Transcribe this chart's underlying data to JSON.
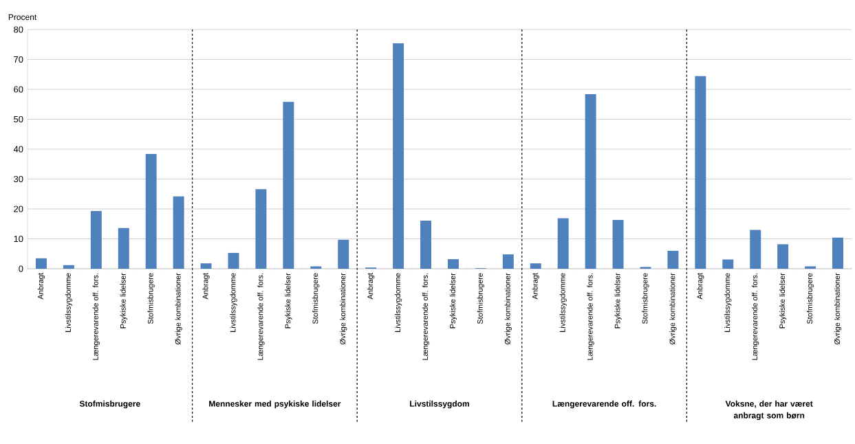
{
  "chart_data": {
    "type": "bar",
    "ylabel": "Procent",
    "color": "#4f81bd",
    "categories": [
      "Anbragt",
      "Livstilssygdomme",
      "Længerevarende off. fors.",
      "Psykiske lidelser",
      "Stofmisbrugere",
      "Øvrige kombinationer",
      "Anbragt",
      "Livstilssygdomme",
      "Længerevarende off. fors.",
      "Psykiske lidelser",
      "Stofmisbrugere",
      "Øvrige kombinationer",
      "Anbragt",
      "Livstilssygdomme",
      "Længerevarende off. fors.",
      "Psykiske lidelser",
      "Stofmisbrugere",
      "Øvrige kombinationer",
      "Anbragt",
      "Livstilssygdomme",
      "Længerevarende off. fors.",
      "Psykiske lidelser",
      "Stofmisbrugere",
      "Øvrige kombinationer",
      "Anbragt",
      "Livstilssygdomme",
      "Længerevarende off. fors.",
      "Psykiske lidelser",
      "Stofmisbrugere",
      "Øvrige kombinationer"
    ],
    "values": [
      3.5,
      1.2,
      19.3,
      13.6,
      38.4,
      24.2,
      1.8,
      5.3,
      26.6,
      55.8,
      0.8,
      9.7,
      0.4,
      75.4,
      16.1,
      3.2,
      0.2,
      4.8,
      1.8,
      16.9,
      58.4,
      16.3,
      0.6,
      6.0,
      64.4,
      3.1,
      13.0,
      8.2,
      0.8,
      10.4
    ],
    "ylim": [
      0,
      80
    ],
    "yticks": [
      0,
      10,
      20,
      30,
      40,
      50,
      60,
      70,
      80
    ],
    "grid": "y",
    "annotations": [
      "Stofmisbrugere",
      "Mennesker med psykiske lidelser",
      "Livstilssygdom",
      "Længerevarende off. fors.",
      "Voksne, der har været anbragt som børn"
    ]
  }
}
